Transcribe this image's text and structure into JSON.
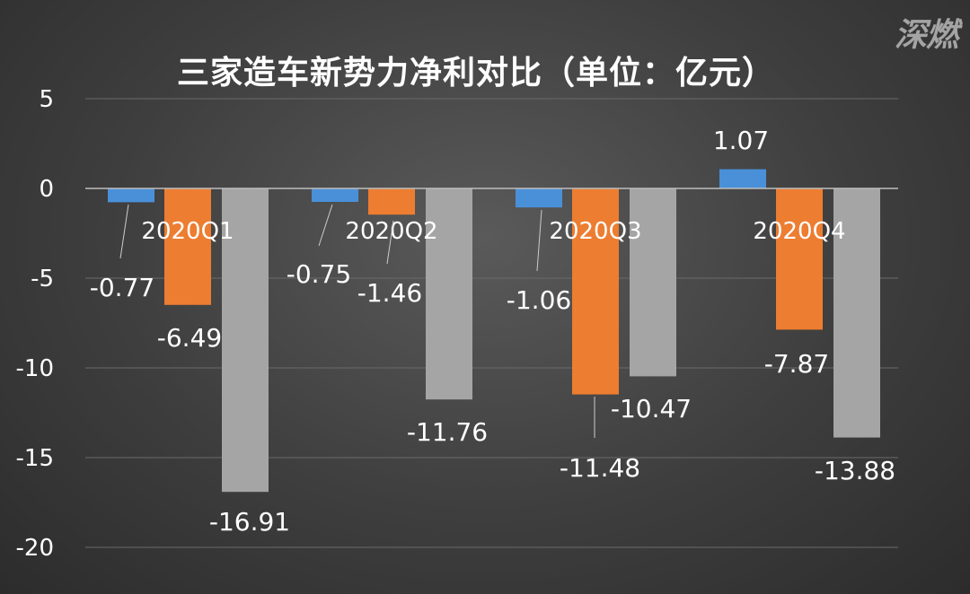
{
  "chart_data": {
    "type": "bar",
    "title": "三家造车新势力净利对比（单位：亿元）",
    "categories": [
      "2020Q1",
      "2020Q2",
      "2020Q3",
      "2020Q4"
    ],
    "series": [
      {
        "values": [
          -0.77,
          -0.75,
          -1.06,
          1.07
        ],
        "color": "#4a90d9"
      },
      {
        "values": [
          -6.49,
          -1.46,
          -11.48,
          -7.87
        ],
        "color": "#ed7d31"
      },
      {
        "values": [
          -16.91,
          -11.76,
          -10.47,
          -13.88
        ],
        "color": "#a5a5a5"
      }
    ],
    "data_labels": [
      [
        "-0.77",
        "-0.75",
        "-1.06",
        "1.07"
      ],
      [
        "-6.49",
        "-1.46",
        "-11.48",
        "-7.87"
      ],
      [
        "-16.91",
        "-11.76",
        "-10.47",
        "-13.88"
      ]
    ],
    "yticks": [
      "5",
      "0",
      "-5",
      "-10",
      "-15",
      "-20"
    ],
    "ytick_values": [
      5,
      0,
      -5,
      -10,
      -15,
      -20
    ],
    "ylim": [
      -20,
      5
    ],
    "grid": true,
    "xlabel": "",
    "ylabel": ""
  },
  "watermark": "深燃",
  "colors": {
    "background": "#3e3e3e",
    "gridline": "#6a6a6a",
    "zero_line": "#bdbdbd",
    "leader_line": "#cccccc"
  }
}
